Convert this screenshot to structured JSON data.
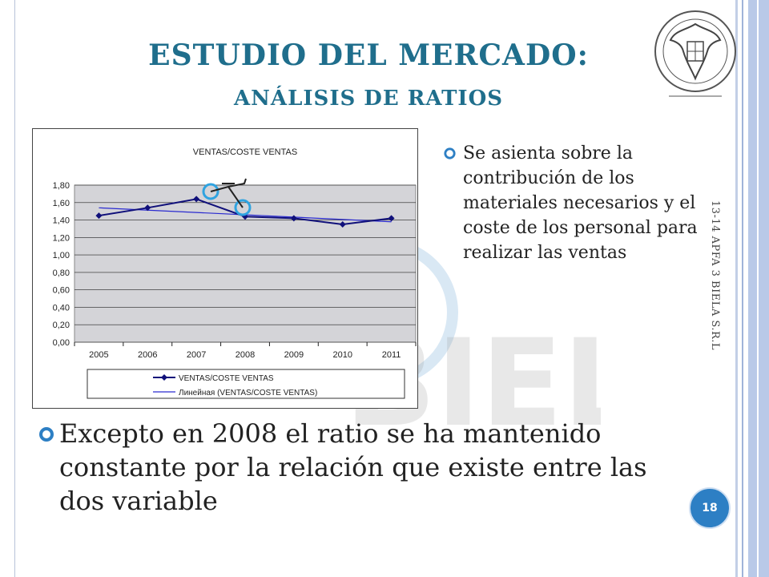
{
  "slide": {
    "title": "ESTUDIO DEL MERCADO:",
    "subtitle": "ANÁLISIS DE RATIOS",
    "bullet_right": "Se asienta sobre la contribución de los materiales necesarios y el coste de los personal para realizar las ventas",
    "bullet_main": "Excepto en 2008 el ratio se ha mantenido constante por la relación que existe entre las dos variable",
    "footer": "13-14 APFA 3 BIELA S.R.L",
    "page_number": "18",
    "watermark": "BIELA",
    "accent_color": "#1f6e8c",
    "bullet_color": "#2d7fc4"
  },
  "chart_data": {
    "type": "line",
    "title": "VENTAS/COSTE VENTAS",
    "categories": [
      "2005",
      "2006",
      "2007",
      "2008",
      "2009",
      "2010",
      "2011"
    ],
    "ylim": [
      0,
      1.8
    ],
    "yticks": [
      "0,00",
      "0,20",
      "0,40",
      "0,60",
      "0,80",
      "1,00",
      "1,20",
      "1,40",
      "1,60",
      "1,80"
    ],
    "grid": true,
    "series": [
      {
        "name": "VENTAS/COSTE VENTAS",
        "values": [
          1.45,
          1.54,
          1.64,
          1.44,
          1.42,
          1.35,
          1.42
        ],
        "color": "#10107a",
        "marker": "diamond"
      },
      {
        "name": "Линейная (VENTAS/COSTE  VENTAS)",
        "trend": [
          1.54,
          1.38
        ],
        "color": "#2a2ad0"
      }
    ],
    "legend": "bottom",
    "plot_background": "#d4d4d8"
  }
}
